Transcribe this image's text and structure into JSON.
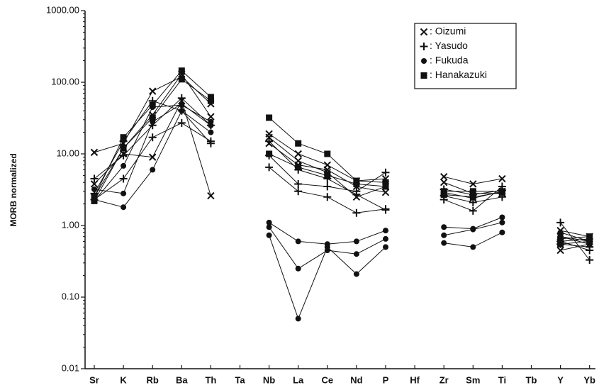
{
  "chart_data": {
    "type": "line",
    "log_y": true,
    "ylabel": "MORB normalized",
    "categories": [
      "Sr",
      "K",
      "Rb",
      "Ba",
      "Th",
      "Ta",
      "Nb",
      "La",
      "Ce",
      "Nd",
      "P",
      "Hf",
      "Zr",
      "Sm",
      "Ti",
      "Tb",
      "Y",
      "Yb"
    ],
    "ylim": [
      0.01,
      1000
    ],
    "yticks": [
      {
        "value": 0.01,
        "label": "0.01"
      },
      {
        "value": 0.1,
        "label": "0.10"
      },
      {
        "value": 1,
        "label": "1.00"
      },
      {
        "value": 10,
        "label": "10.00"
      },
      {
        "value": 100,
        "label": "100.00"
      },
      {
        "value": 1000,
        "label": "1000.00"
      }
    ],
    "legend": "upper right",
    "series": [
      {
        "name": ": Oizumi",
        "marker": "x",
        "color": "#111111",
        "samples": [
          [
            10.5,
            14,
            75,
            120,
            50,
            null,
            19,
            10,
            7,
            4.2,
            4.5,
            null,
            4.8,
            3.8,
            4.5,
            null,
            0.85,
            0.7
          ],
          [
            3.8,
            10,
            9,
            55,
            2.6,
            null,
            17,
            8,
            5.5,
            2.5,
            3.5,
            null,
            4,
            2.8,
            2.8,
            null,
            0.45,
            0.55
          ],
          [
            2.5,
            12,
            35,
            130,
            33,
            null,
            14,
            7,
            6,
            3.5,
            2.9,
            null,
            2.9,
            2.4,
            3.0,
            null,
            0.7,
            0.6
          ]
        ]
      },
      {
        "name": ": Yasudo",
        "marker": "plus",
        "color": "#111111",
        "samples": [
          [
            2.3,
            4.5,
            17,
            27,
            15,
            null,
            6.5,
            3,
            2.5,
            1.5,
            1.7,
            null,
            2.3,
            1.6,
            3.5,
            null,
            1.1,
            0.33
          ],
          [
            4.5,
            9.5,
            25,
            60,
            25,
            null,
            9.5,
            3.8,
            3.5,
            3.0,
            5.5,
            null,
            2.6,
            2.1,
            2.5,
            null,
            0.6,
            0.45
          ],
          [
            2.8,
            15,
            55,
            40,
            14,
            null,
            15,
            6,
            4.5,
            2.7,
            1.65,
            null,
            3.2,
            2.7,
            3.1,
            null,
            0.55,
            0.5
          ]
        ]
      },
      {
        "name": ": Fukuda",
        "marker": "circle",
        "color": "#111111",
        "samples": [
          [
            2.3,
            1.8,
            6,
            40,
            20,
            null,
            1.1,
            0.6,
            0.55,
            0.6,
            0.85,
            null,
            0.95,
            0.9,
            1.3,
            null,
            0.8,
            0.6
          ],
          [
            3.2,
            2.8,
            28,
            50,
            25,
            null,
            0.95,
            0.25,
            0.45,
            0.4,
            0.65,
            null,
            0.73,
            0.88,
            1.1,
            null,
            0.7,
            0.55
          ],
          [
            2.2,
            6.8,
            45,
            48,
            28,
            null,
            0.73,
            0.05,
            0.5,
            0.21,
            0.5,
            null,
            0.57,
            0.5,
            0.8,
            null,
            0.6,
            0.65
          ]
        ]
      },
      {
        "name": ": Hanakazuki",
        "marker": "square",
        "color": "#111111",
        "samples": [
          [
            2.5,
            17,
            48,
            145,
            62,
            null,
            32,
            14,
            10,
            4.2,
            4,
            null,
            3.0,
            3.0,
            3.0,
            null,
            0.65,
            0.7
          ],
          [
            2.2,
            12,
            32,
            110,
            55,
            null,
            10,
            6.5,
            5,
            3.8,
            3.5,
            null,
            2.7,
            2.5,
            2.9,
            null,
            0.55,
            0.6
          ]
        ]
      }
    ]
  }
}
